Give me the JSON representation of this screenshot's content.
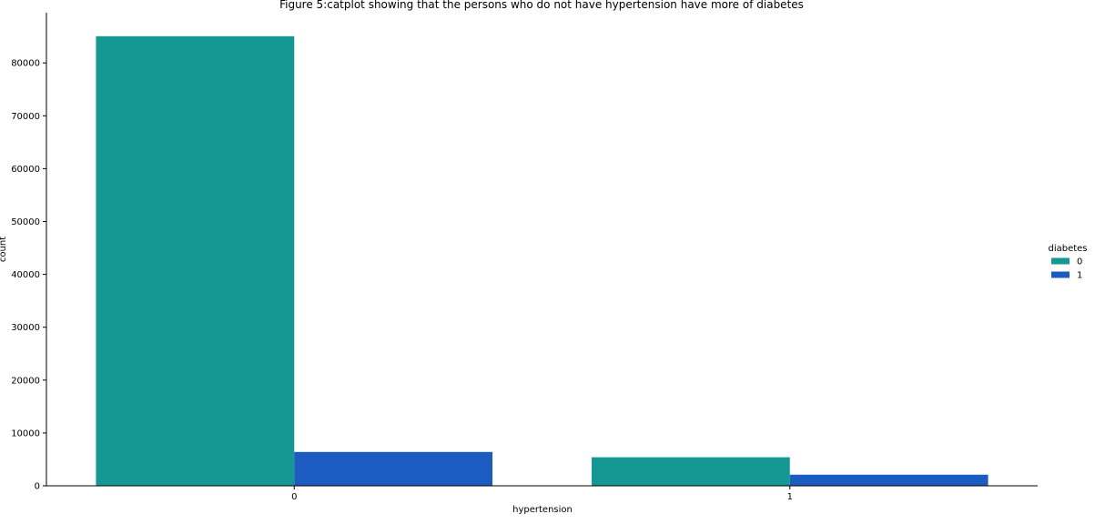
{
  "chart_data": {
    "type": "bar",
    "title": "Figure 5:catplot showing that the persons who do not have hypertension have more of diabetes",
    "xlabel": "hypertension",
    "ylabel": "count",
    "categories": [
      "0",
      "1"
    ],
    "series": [
      {
        "name": "0",
        "values": [
          85060,
          5400
        ],
        "color": "#159794"
      },
      {
        "name": "1",
        "values": [
          6400,
          2100
        ],
        "color": "#1c5bbf"
      }
    ],
    "ylim": [
      0,
      89500
    ],
    "yticks": [
      0,
      10000,
      20000,
      30000,
      40000,
      50000,
      60000,
      70000,
      80000
    ],
    "legend": {
      "title": "diabetes",
      "placement": "right"
    },
    "grid": false
  }
}
